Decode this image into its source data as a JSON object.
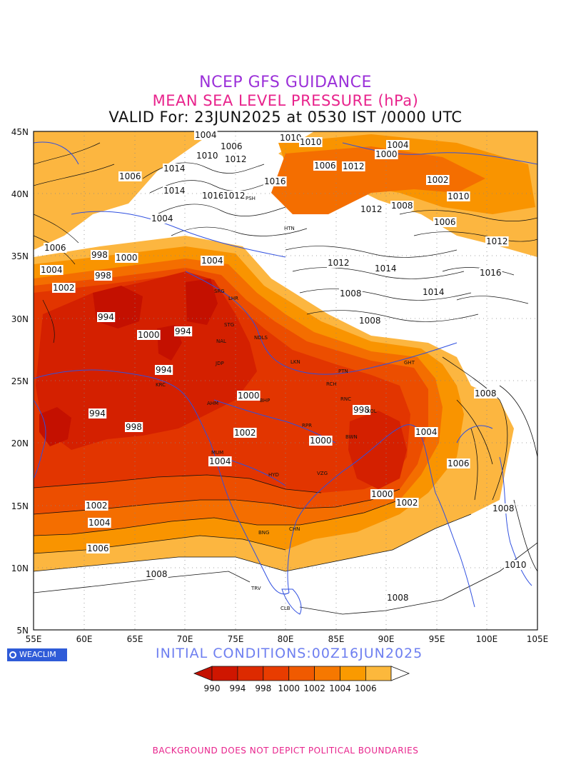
{
  "header": {
    "line1": "NCEP GFS GUIDANCE",
    "line2": "MEAN SEA LEVEL PRESSURE (hPa)",
    "line3": "VALID For: 23JUN2025 at 0530 IST /0000 UTC"
  },
  "axes": {
    "lat_labels": [
      "45N",
      "40N",
      "35N",
      "30N",
      "25N",
      "20N",
      "15N",
      "10N",
      "5N"
    ],
    "lon_labels": [
      "55E",
      "60E",
      "65E",
      "70E",
      "75E",
      "80E",
      "85E",
      "90E",
      "95E",
      "100E",
      "105E"
    ]
  },
  "contour_labels": {
    "items": [
      "1004",
      "1010",
      "1010",
      "1004",
      "1000",
      "1006",
      "1012",
      "1006",
      "1010",
      "1012",
      "1014",
      "1016",
      "1006",
      "1002",
      "1014",
      "1016",
      "1012",
      "1004",
      "1010",
      "1012",
      "1008",
      "998",
      "1004",
      "1002",
      "998",
      "1000",
      "994",
      "1000",
      "994",
      "994",
      "1006",
      "994",
      "998",
      "1000",
      "1002",
      "998",
      "1004",
      "1000",
      "1004",
      "1002",
      "1006",
      "1008",
      "1000",
      "1002",
      "1004",
      "1006",
      "1008",
      "1008",
      "1008",
      "1010",
      "1012",
      "1014",
      "1014",
      "1016",
      "1006",
      "1008",
      "1004",
      "1012",
      "1008"
    ]
  },
  "cities": [
    "SRG",
    "LHR",
    "STG",
    "NAL",
    "JDP",
    "KRC",
    "AHM",
    "NDLS",
    "LKN",
    "BHP",
    "PTN",
    "RNC",
    "RCH",
    "RPR",
    "KOL",
    "GHT",
    "MUM",
    "HYD",
    "VZG",
    "BWN",
    "CHN",
    "BNG",
    "TRV",
    "CLB",
    "PSH",
    "HTN"
  ],
  "legend": {
    "tick_labels": [
      "990",
      "994",
      "998",
      "1000",
      "1002",
      "1004",
      "1006"
    ],
    "colors": [
      "#cf1600",
      "#dd2a00",
      "#e83c00",
      "#f05a00",
      "#f67800",
      "#fa9a00",
      "#fcb83c"
    ]
  },
  "palette": {
    "p990": "#c41000",
    "p994": "#d42000",
    "p998": "#e23500",
    "p1000": "#ec4e00",
    "p1002": "#f46e00",
    "p1004": "#f99400",
    "p1006": "#fcb640",
    "coast": "#3050e0",
    "title_purple": "#9b30d9",
    "title_pink": "#e8238c"
  },
  "logo": {
    "text": "WEACLIM"
  },
  "footer": {
    "initial_conditions": "INITIAL CONDITIONS:00Z16JUN2025",
    "disclaimer": "BACKGROUND DOES NOT DEPICT POLITICAL BOUNDARIES"
  }
}
